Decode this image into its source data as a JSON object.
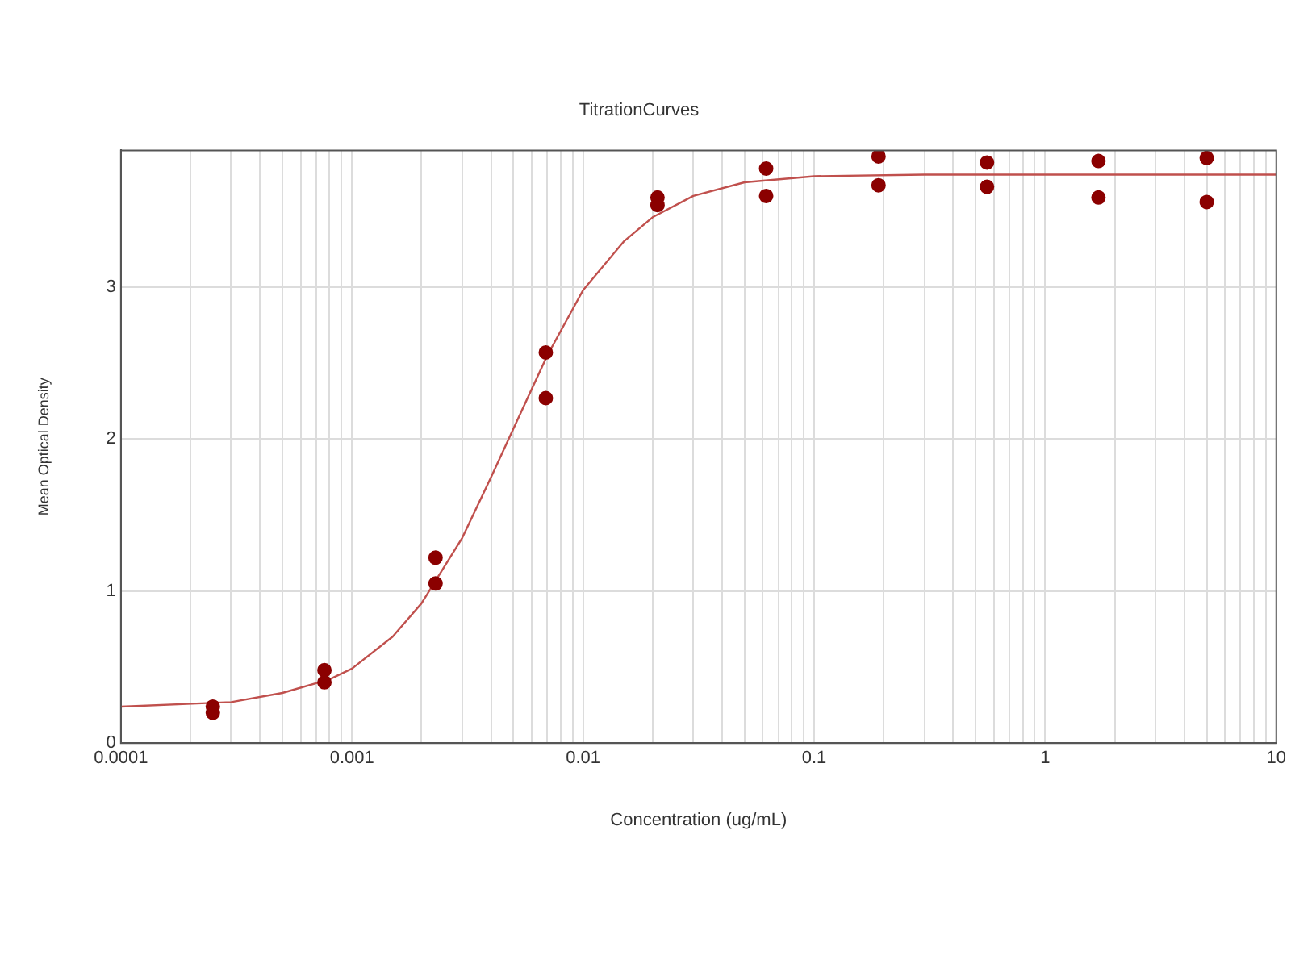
{
  "chart_data": {
    "type": "scatter",
    "title": "TitrationCurves",
    "xlabel": "Concentration (ug/mL)",
    "ylabel": "Mean Optical Density",
    "log": "x",
    "grid": true,
    "legend": false,
    "xlim": [
      0.0001,
      10
    ],
    "ylim": [
      0,
      3.9
    ],
    "xticks": [
      0.0001,
      {
        "value": 0.0002,
        "label": null
      },
      {
        "value": 0.0003,
        "label": null
      },
      {
        "value": 0.0004,
        "label": null
      },
      {
        "value": 0.0005,
        "label": null
      },
      {
        "value": 0.0006,
        "label": null
      },
      {
        "value": 0.0007,
        "label": null
      },
      {
        "value": 0.0008,
        "label": null
      },
      {
        "value": 0.0009,
        "label": null
      },
      0.001,
      {
        "value": 0.002,
        "label": null
      },
      {
        "value": 0.003,
        "label": null
      },
      {
        "value": 0.004,
        "label": null
      },
      {
        "value": 0.005,
        "label": null
      },
      {
        "value": 0.006,
        "label": null
      },
      {
        "value": 0.007,
        "label": null
      },
      {
        "value": 0.008,
        "label": null
      },
      {
        "value": 0.009,
        "label": null
      },
      0.01,
      {
        "value": 0.02,
        "label": null
      },
      {
        "value": 0.03,
        "label": null
      },
      {
        "value": 0.04,
        "label": null
      },
      {
        "value": 0.05,
        "label": null
      },
      {
        "value": 0.06,
        "label": null
      },
      {
        "value": 0.07,
        "label": null
      },
      {
        "value": 0.08,
        "label": null
      },
      {
        "value": 0.09,
        "label": null
      },
      0.1,
      {
        "value": 0.2,
        "label": null
      },
      {
        "value": 0.3,
        "label": null
      },
      {
        "value": 0.4,
        "label": null
      },
      {
        "value": 0.5,
        "label": null
      },
      {
        "value": 0.6,
        "label": null
      },
      {
        "value": 0.7,
        "label": null
      },
      {
        "value": 0.8,
        "label": null
      },
      {
        "value": 0.9,
        "label": null
      },
      1,
      {
        "value": 2,
        "label": null
      },
      {
        "value": 3,
        "label": null
      },
      {
        "value": 4,
        "label": null
      },
      {
        "value": 5,
        "label": null
      },
      {
        "value": 6,
        "label": null
      },
      {
        "value": 7,
        "label": null
      },
      {
        "value": 8,
        "label": null
      },
      {
        "value": 9,
        "label": null
      },
      10
    ],
    "yticks": [
      0,
      1,
      2,
      3
    ],
    "series": [
      {
        "type": "scatter",
        "color": "#8b0000",
        "marker": "circle",
        "x": [
          0.00025,
          0.00025,
          0.00076,
          0.00076,
          0.0023,
          0.0023,
          0.0069,
          0.0069,
          0.021,
          0.021,
          0.062,
          0.062,
          0.19,
          0.19,
          0.56,
          0.56,
          1.7,
          1.7,
          5,
          5
        ],
        "values": [
          0.2,
          0.24,
          0.48,
          0.4,
          1.22,
          1.05,
          2.57,
          2.27,
          3.59,
          3.54,
          3.78,
          3.6,
          3.86,
          3.67,
          3.82,
          3.66,
          3.83,
          3.59,
          3.85,
          3.56
        ]
      },
      {
        "type": "line",
        "color": "#c0504d",
        "marker": "none",
        "line_style": "solid",
        "x": [
          0.0001,
          0.0003,
          0.0005,
          0.0008,
          0.001,
          0.0015,
          0.002,
          0.003,
          0.004,
          0.005,
          0.007,
          0.01,
          0.015,
          0.02,
          0.03,
          0.05,
          0.1,
          0.3,
          1,
          10
        ],
        "values": [
          0.24,
          0.27,
          0.33,
          0.42,
          0.49,
          0.7,
          0.92,
          1.35,
          1.75,
          2.07,
          2.55,
          2.98,
          3.3,
          3.46,
          3.6,
          3.69,
          3.73,
          3.74,
          3.74,
          3.74
        ]
      }
    ]
  }
}
